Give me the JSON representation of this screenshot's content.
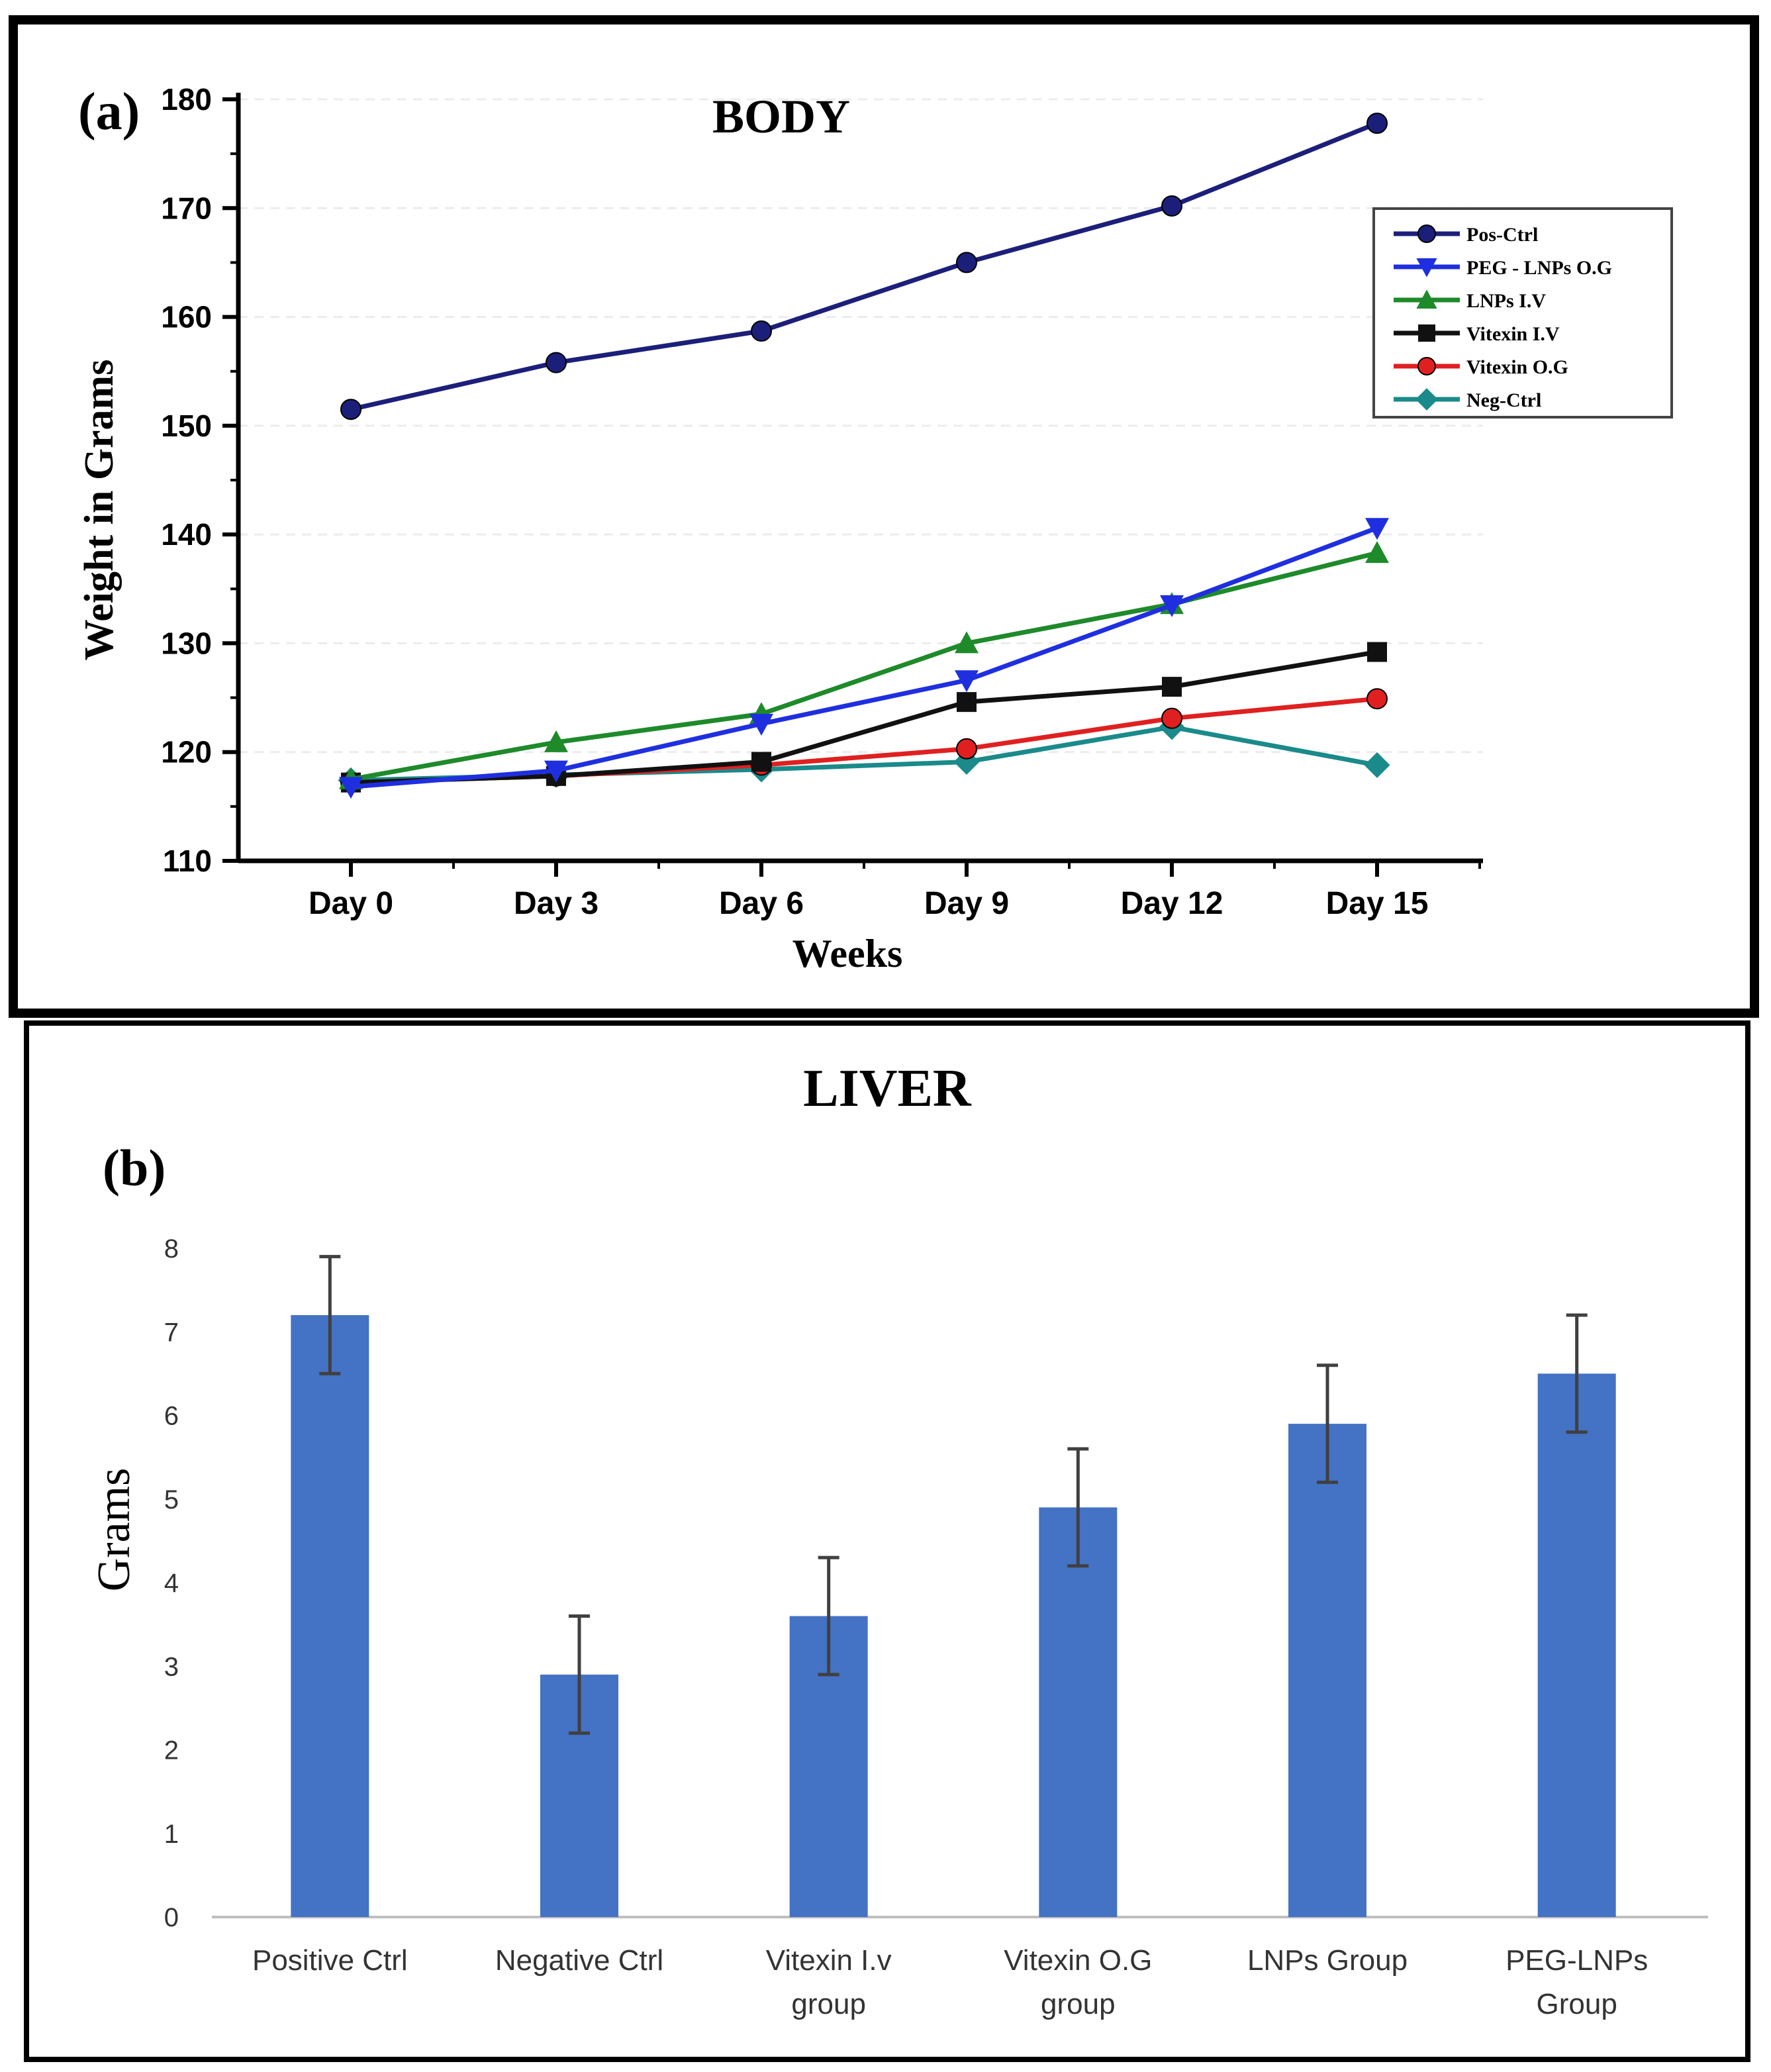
{
  "panel_a": {
    "label": "(a)",
    "chart_data": {
      "type": "line",
      "title": "BODY",
      "xlabel": "Weeks",
      "ylabel": "Weight in Grams",
      "categories": [
        "Day 0",
        "Day 3",
        "Day 6",
        "Day 9",
        "Day 12",
        "Day 15"
      ],
      "ylim": [
        110,
        180
      ],
      "yticks": [
        110,
        120,
        130,
        140,
        150,
        160,
        170,
        180
      ],
      "legend_position": "top-right",
      "series": [
        {
          "name": "Pos-Ctrl",
          "color": "#1c1f7a",
          "marker": "circle",
          "values": [
            151.5,
            155.8,
            158.7,
            165.0,
            170.2,
            177.8
          ]
        },
        {
          "name": "PEG - LNPs O.G",
          "color": "#1f2fe0",
          "marker": "triangle-down",
          "values": [
            116.8,
            118.3,
            122.6,
            126.6,
            133.5,
            140.6
          ]
        },
        {
          "name": "LNPs I.V",
          "color": "#1e8a2a",
          "marker": "triangle-up",
          "values": [
            117.5,
            120.9,
            123.5,
            130.0,
            133.6,
            138.3
          ]
        },
        {
          "name": "Vitexin I.V",
          "color": "#111111",
          "marker": "square",
          "values": [
            117.2,
            117.8,
            119.1,
            124.6,
            126.0,
            129.2
          ]
        },
        {
          "name": "Vitexin O.G",
          "color": "#e02020",
          "marker": "circle",
          "values": [
            117.2,
            117.8,
            118.8,
            120.3,
            123.1,
            124.9
          ]
        },
        {
          "name": "Neg-Ctrl",
          "color": "#1a8a8a",
          "marker": "diamond",
          "values": [
            117.4,
            117.9,
            118.4,
            119.1,
            122.3,
            118.8
          ]
        }
      ]
    }
  },
  "panel_b": {
    "label": "(b)",
    "chart_data": {
      "type": "bar",
      "title": "LIVER",
      "xlabel": "",
      "ylabel": "Grams",
      "ylim": [
        0,
        8
      ],
      "yticks": [
        0,
        1,
        2,
        3,
        4,
        5,
        6,
        7,
        8
      ],
      "bar_color": "#4472c4",
      "categories": [
        [
          "Positive Ctrl"
        ],
        [
          "Negative Ctrl"
        ],
        [
          "Vitexin I.v",
          "group"
        ],
        [
          "Vitexin O.G",
          "group"
        ],
        [
          "LNPs Group"
        ],
        [
          "PEG-LNPs",
          "Group"
        ]
      ],
      "values": [
        7.2,
        2.9,
        3.6,
        4.9,
        5.9,
        6.5
      ],
      "errors": [
        0.7,
        0.7,
        0.7,
        0.7,
        0.7,
        0.7
      ]
    }
  }
}
